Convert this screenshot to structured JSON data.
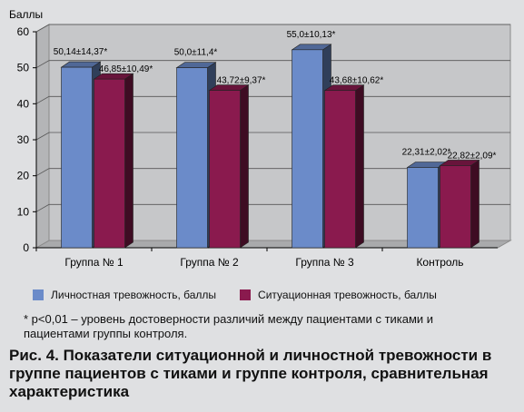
{
  "chart_data": {
    "type": "bar",
    "ylabel": "Баллы",
    "ylim": [
      0,
      60
    ],
    "yticks": [
      0,
      10,
      20,
      30,
      40,
      50,
      60
    ],
    "categories": [
      "Группа № 1",
      "Группа № 2",
      "Группа № 3",
      "Контроль"
    ],
    "series": [
      {
        "name": "Личностная тревожность, баллы",
        "color": "#6b8bc9",
        "values": [
          50.14,
          50.0,
          55.0,
          22.31
        ],
        "labels": [
          "50,14±14,37*",
          "50,0±11,4*",
          "55,0±10,13*",
          "22,31±2,02*"
        ]
      },
      {
        "name": "Ситуационная тревожность, баллы",
        "color": "#8a1a4e",
        "values": [
          46.85,
          43.72,
          43.68,
          22.82
        ],
        "labels": [
          "46,85±10,49*",
          "43,72±9,37*",
          "43,68±10,62*",
          "22,82±2,09*"
        ]
      }
    ],
    "grid": true,
    "legend_position": "bottom"
  },
  "footnote": "* p<0,01 – уровень достоверности различий между пациентами с тиками и пациентами группы контроля.",
  "caption": "Рис. 4. Показатели ситуационной и личностной тревожности в группе пациентов с тиками и группе контроля, сравнительная характеристика"
}
